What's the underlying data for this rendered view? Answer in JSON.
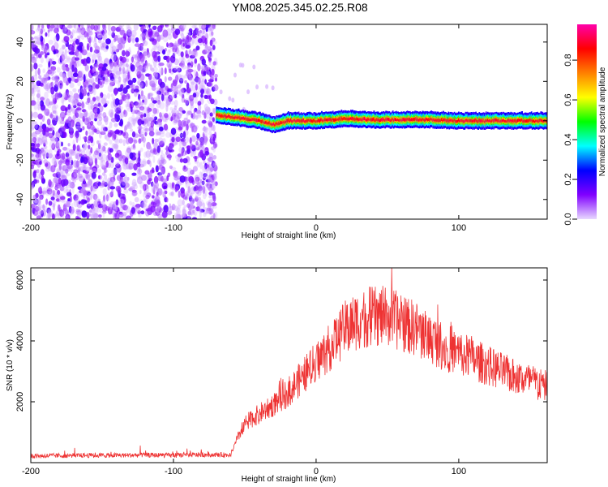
{
  "figure": {
    "title": "YM08.2025.345.02.25.R08"
  },
  "chart_data": [
    {
      "type": "heatmap",
      "title": "YM08.2025.345.02.25.R08",
      "xlabel": "Height of straight line (km)",
      "ylabel": "Frequency (Hz)",
      "xlim": [
        -200,
        162
      ],
      "ylim": [
        -50,
        49
      ],
      "x_ticks": [
        -200,
        -100,
        0,
        100
      ],
      "y_ticks": [
        -40,
        -20,
        0,
        20,
        40
      ],
      "grid": false,
      "regions": [
        {
          "x_range": [
            -200,
            -70
          ],
          "y_range": [
            -50,
            49
          ],
          "amplitude_range": [
            0.0,
            0.15
          ],
          "pattern": "broadband noise"
        },
        {
          "x_range": [
            -70,
            162
          ],
          "y_range": [
            -2,
            3
          ],
          "amplitude_range": [
            0.2,
            0.95
          ],
          "pattern": "narrow band near 0 Hz"
        }
      ],
      "band_center": [
        {
          "x": -70,
          "y": 3
        },
        {
          "x": -60,
          "y": 2
        },
        {
          "x": -50,
          "y": 1
        },
        {
          "x": -40,
          "y": 0
        },
        {
          "x": -30,
          "y": -2
        },
        {
          "x": -20,
          "y": 0
        },
        {
          "x": -10,
          "y": 0
        },
        {
          "x": 0,
          "y": 0
        },
        {
          "x": 20,
          "y": 1
        },
        {
          "x": 40,
          "y": 0.5
        },
        {
          "x": 60,
          "y": 0.5
        },
        {
          "x": 80,
          "y": 0.5
        },
        {
          "x": 100,
          "y": 0
        },
        {
          "x": 120,
          "y": 0
        },
        {
          "x": 140,
          "y": 0
        },
        {
          "x": 162,
          "y": 0
        }
      ],
      "colorbar": {
        "label": "Normalized spectral amplitude",
        "range": [
          0,
          0.98
        ],
        "ticks": [
          "0.0",
          "0.2",
          "0.4",
          "0.6",
          "0.8"
        ],
        "colors": [
          "#e8d8ff",
          "#8000ff",
          "#0000ff",
          "#00ffff",
          "#00ff00",
          "#ffff00",
          "#ff8000",
          "#ff0000",
          "#ff00aa"
        ]
      }
    },
    {
      "type": "line",
      "xlabel": "Height of straight line (km)",
      "ylabel": "SNR (10 * v/v)",
      "xlim": [
        -200,
        162
      ],
      "ylim": [
        0,
        6400
      ],
      "x_ticks": [
        -200,
        -100,
        0,
        100
      ],
      "y_ticks": [
        2000,
        4000,
        6000
      ],
      "grid": false,
      "color": "#ee3333",
      "series": [
        {
          "x": [
            -200,
            -180,
            -160,
            -140,
            -120,
            -100,
            -80,
            -70,
            -60,
            -56,
            -50,
            -40,
            -30,
            -20,
            -10,
            0,
            10,
            20,
            30,
            40,
            50,
            60,
            70,
            80,
            90,
            100,
            110,
            120,
            130,
            140,
            150,
            162
          ],
          "y": [
            220,
            230,
            240,
            240,
            250,
            240,
            260,
            260,
            250,
            700,
            1300,
            1600,
            1900,
            2300,
            2800,
            3300,
            3800,
            4400,
            4700,
            4800,
            4800,
            4600,
            4400,
            4100,
            3800,
            3600,
            3400,
            3200,
            3000,
            2800,
            2700,
            2500
          ]
        }
      ]
    }
  ]
}
